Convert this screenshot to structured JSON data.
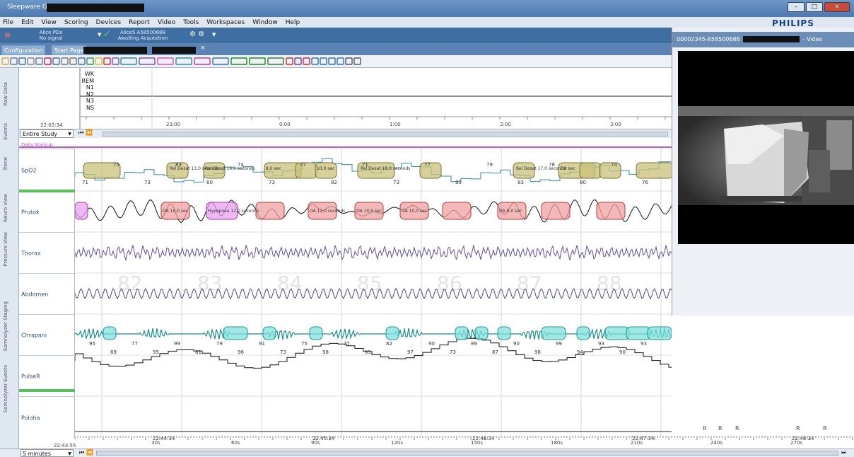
{
  "window": {
    "title": "Sleepware G3",
    "min_icon": "minimize-icon",
    "max_icon": "maximize-icon",
    "close_icon": "close-icon"
  },
  "menu": [
    "File",
    "Edit",
    "View",
    "Scoring",
    "Devices",
    "Report",
    "Video",
    "Tools",
    "Workspaces",
    "Window",
    "Help"
  ],
  "brand": "PHILIPS",
  "acquisition": {
    "device_line1": "Alice PDx",
    "device_line2": "No signal",
    "status_line1": "Alice5 A58500688",
    "status_line2": "Awaiting Acquisition"
  },
  "tabs": [
    "Configuration",
    "Start Page"
  ],
  "side_tabs": [
    "Raw Data",
    "Events",
    "Trend",
    "Neuro View",
    "Pressure View",
    "Somnolyzer Staging",
    "Somnolyzer Events"
  ],
  "hypnogram": {
    "stages": [
      "WK",
      "REM",
      "N1",
      "N2",
      "N3",
      "NS"
    ],
    "current_time": "22:03:34",
    "timeline_labels": [
      "23:00",
      "0:00",
      "1:00",
      "2:00",
      "3:00"
    ]
  },
  "view_range": "Entire Study",
  "data_markup": "Data Markup",
  "channels": [
    "SpO2",
    "Prutok",
    "Thorax",
    "Abdomen",
    "Chrapani",
    "PulseR",
    "Poloha"
  ],
  "spo2_values": [
    "71",
    "75",
    "73",
    "83",
    "80",
    "74",
    "73",
    "77",
    "82",
    "71",
    "73",
    "77",
    "80",
    "79",
    "83",
    "78",
    "80",
    "74",
    "76"
  ],
  "spo2_events": [
    "Rel Desat 13,0 seconds",
    "Rel Desat 16,0 seconds",
    "Rel Desat 18,0 seconds",
    "Rel Desat 17,0 seconds",
    "8,0 sec",
    "10,0 sec",
    "7,0 sec"
  ],
  "flow_events": [
    "Hypopnea 12,0 seconds",
    "OA 10,0 sec",
    "OA 12,0 seconds",
    "OA 10,5 sec",
    "OA 10,0 sec",
    "OA 9,0 sec"
  ],
  "epoch_numbers": [
    "82",
    "83",
    "84",
    "85",
    "86",
    "87",
    "88"
  ],
  "pulse_values": [
    "95",
    "89",
    "77",
    "95",
    "99",
    "81",
    "79",
    "96",
    "91",
    "73",
    "75",
    "98",
    "77",
    "95",
    "82",
    "97",
    "90",
    "73",
    "89",
    "87",
    "90",
    "98",
    "99",
    "94",
    "93",
    "90",
    "93"
  ],
  "position_marks": [
    "R",
    "R",
    "R",
    "R",
    "R"
  ],
  "end_time": "22:43:55",
  "page_length": "5 minutes",
  "time_axis": [
    "30s",
    "60s",
    "90s",
    "120s",
    "150s",
    "180s",
    "210s",
    "240s",
    "270s"
  ],
  "clock_labels": [
    "22:44:34",
    "22:45:34",
    "22:46:34",
    "22:47:34",
    "22:48:34"
  ],
  "video": {
    "title_prefix": "00002345-A58500688",
    "title_suffix": "- Video"
  },
  "colors": {
    "spo2": "#2b8f9a",
    "flow": "#111111",
    "thorax": "#5a4fb2",
    "abdomen": "#4a4a8a",
    "snore": "#178f8a",
    "pulse": "#111111",
    "event_desat": "#c8c27a",
    "event_oa": "#f2a0a0",
    "event_hypopnea": "#e9a0ef",
    "event_snore": "#7fe0dc"
  }
}
